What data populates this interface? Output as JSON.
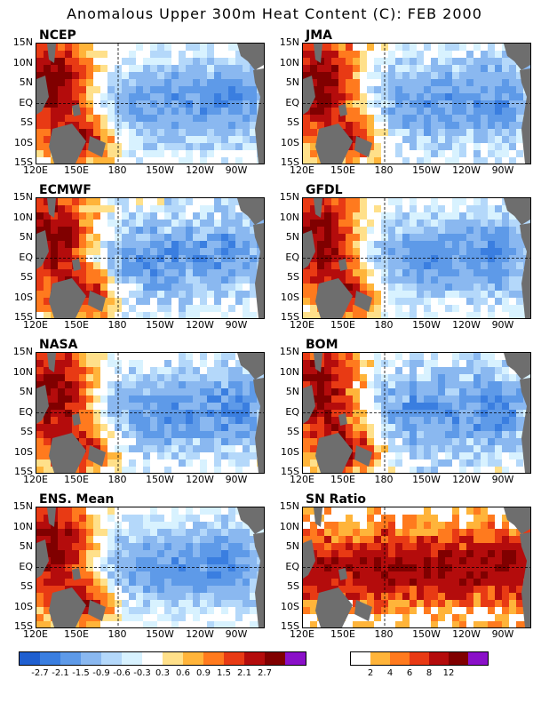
{
  "title": "Anomalous Upper 300m Heat Content (C): FEB 2000",
  "panels": [
    {
      "name": "NCEP"
    },
    {
      "name": "JMA"
    },
    {
      "name": "ECMWF"
    },
    {
      "name": "GFDL"
    },
    {
      "name": "NASA"
    },
    {
      "name": "BOM"
    },
    {
      "name": "ENS. Mean"
    },
    {
      "name": "SN Ratio"
    }
  ],
  "lat_labels": [
    "15N",
    "10N",
    "5N",
    "EQ",
    "5S",
    "10S",
    "15S"
  ],
  "lon_labels": [
    "120E",
    "150E",
    "180",
    "150W",
    "120W",
    "90W"
  ],
  "anomaly_colorbar": {
    "colors": [
      "#1f5fd0",
      "#3a7ee0",
      "#5e9ae8",
      "#8ab8f0",
      "#b4d8fa",
      "#d8f2ff",
      "#ffffff",
      "#ffe08a",
      "#ffb43a",
      "#ff7a1e",
      "#e83a14",
      "#b40c0c",
      "#800000",
      "#8a10c8"
    ],
    "labels": [
      "-2.7",
      "-2.1",
      "-1.5",
      "-0.9",
      "-0.6",
      "-0.3",
      "0.3",
      "0.6",
      "0.9",
      "1.5",
      "2.1",
      "2.7"
    ]
  },
  "sn_colorbar": {
    "colors": [
      "#ffffff",
      "#ffb43a",
      "#ff7a1e",
      "#e83a14",
      "#b40c0c",
      "#800000",
      "#8a10c8"
    ],
    "labels": [
      "2",
      "4",
      "6",
      "8",
      "12"
    ]
  },
  "colors": {
    "land": "#6e6e6e",
    "frame": "#000000"
  }
}
